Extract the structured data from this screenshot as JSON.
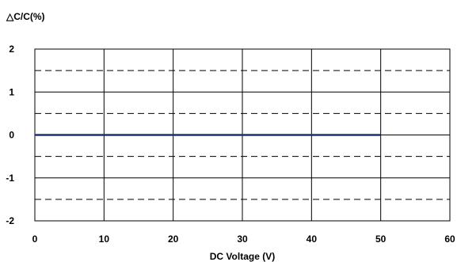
{
  "chart_data": {
    "type": "line",
    "title": "△C/C(%)",
    "xlabel": "DC Voltage (V)",
    "ylabel": "",
    "xlim": [
      0,
      60
    ],
    "ylim": [
      -2,
      2
    ],
    "x_ticks": [
      "0",
      "10",
      "20",
      "30",
      "40",
      "50",
      "60"
    ],
    "y_ticks": [
      "2",
      "1",
      "0",
      "-1",
      "-2"
    ],
    "x_tick_values": [
      0,
      10,
      20,
      30,
      40,
      50,
      60
    ],
    "y_tick_values": [
      2,
      1,
      0,
      -1,
      -2
    ],
    "grid": {
      "vertical": "solid",
      "horizontal_major": "solid",
      "horizontal_minor": "dashed"
    },
    "series": [
      {
        "x": [
          0,
          50
        ],
        "y": [
          0,
          0
        ],
        "color": "#1f2f7a"
      }
    ]
  }
}
